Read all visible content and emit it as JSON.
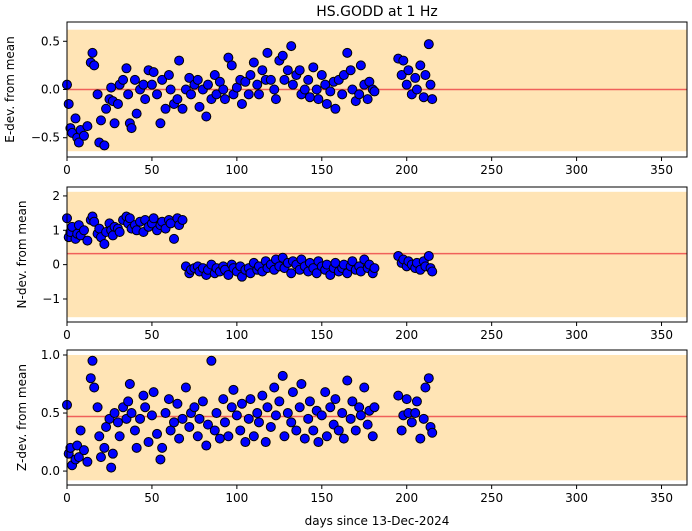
{
  "chart_data": {
    "type": "scatter",
    "title": "HS.GODD at 1 Hz",
    "xlabel": "days since 13-Dec-2024",
    "xlim": [
      0,
      365
    ],
    "xticks": [
      0,
      50,
      100,
      150,
      200,
      250,
      300,
      350
    ],
    "point_color": "#0000ff",
    "band_color": "#ffe4b5",
    "line_color": "#f0605a",
    "x": [
      0,
      1,
      2,
      3,
      5,
      6,
      7,
      8,
      10,
      12,
      14,
      15,
      16,
      18,
      19,
      20,
      22,
      23,
      25,
      26,
      27,
      28,
      30,
      31,
      33,
      35,
      36,
      37,
      38,
      40,
      41,
      43,
      45,
      46,
      48,
      50,
      51,
      53,
      55,
      56,
      58,
      60,
      61,
      63,
      65,
      66,
      68,
      70,
      72,
      73,
      75,
      77,
      78,
      80,
      82,
      83,
      85,
      87,
      88,
      90,
      92,
      93,
      95,
      97,
      98,
      100,
      102,
      103,
      105,
      107,
      108,
      110,
      112,
      113,
      115,
      117,
      118,
      120,
      122,
      123,
      125,
      127,
      128,
      130,
      132,
      133,
      135,
      137,
      138,
      140,
      142,
      143,
      145,
      147,
      148,
      150,
      152,
      153,
      155,
      157,
      158,
      160,
      162,
      163,
      165,
      167,
      168,
      170,
      172,
      173,
      175,
      177,
      178,
      180,
      181,
      195,
      197,
      198,
      200,
      201,
      203,
      205,
      206,
      208,
      210,
      211,
      213,
      214,
      215
    ],
    "panels": [
      {
        "ylabel": "E-dev. from mean",
        "ylim": [
          -0.7,
          0.7
        ],
        "yticks": [
          {
            "value": -0.5,
            "label": "−0.5"
          },
          {
            "value": 0,
            "label": "0.0"
          },
          {
            "value": 0.5,
            "label": "0.5"
          }
        ],
        "mean": 0,
        "band": [
          -0.64,
          0.62
        ],
        "values": [
          0.05,
          -0.15,
          -0.4,
          -0.45,
          -0.3,
          -0.5,
          -0.55,
          -0.42,
          -0.48,
          -0.38,
          0.28,
          0.38,
          0.25,
          -0.05,
          -0.55,
          -0.32,
          -0.58,
          -0.2,
          -0.1,
          0.02,
          -0.12,
          -0.35,
          -0.15,
          0.05,
          0.1,
          0.22,
          -0.05,
          -0.35,
          -0.4,
          0.1,
          -0.25,
          0.0,
          0.05,
          -0.1,
          0.2,
          0.05,
          0.18,
          -0.05,
          -0.35,
          0.1,
          -0.2,
          0.15,
          0.0,
          -0.15,
          -0.1,
          0.3,
          -0.2,
          0.0,
          0.12,
          -0.05,
          0.05,
          0.1,
          -0.18,
          0.0,
          -0.28,
          0.05,
          -0.1,
          0.15,
          -0.05,
          0.08,
          0.0,
          -0.1,
          0.33,
          0.25,
          -0.05,
          0.02,
          0.1,
          -0.15,
          0.08,
          -0.05,
          0.15,
          0.28,
          0.05,
          -0.05,
          0.2,
          0.1,
          0.38,
          0.1,
          0.0,
          -0.1,
          0.3,
          0.35,
          0.1,
          0.2,
          0.45,
          0.05,
          0.15,
          0.2,
          -0.05,
          0.0,
          0.1,
          -0.08,
          0.23,
          0.0,
          -0.1,
          0.15,
          0.05,
          -0.15,
          -0.02,
          0.08,
          -0.2,
          0.1,
          -0.05,
          0.15,
          0.38,
          0.2,
          0.0,
          -0.12,
          -0.05,
          0.25,
          0.05,
          -0.1,
          0.08,
          0.0,
          -0.02,
          0.32,
          0.15,
          0.3,
          0.05,
          0.2,
          -0.05,
          0.12,
          0.0,
          0.25,
          -0.08,
          0.15,
          0.47,
          0.05,
          -0.1
        ]
      },
      {
        "ylabel": "N-dev. from mean",
        "ylim": [
          -1.67,
          2.26
        ],
        "yticks": [
          {
            "value": -1,
            "label": "−1"
          },
          0,
          1,
          2
        ],
        "mean": 0.32,
        "band": [
          -1.53,
          2.12
        ],
        "values": [
          1.35,
          0.8,
          0.95,
          1.1,
          0.75,
          0.9,
          1.15,
          0.85,
          1.0,
          0.7,
          1.3,
          1.4,
          1.25,
          0.9,
          1.05,
          0.8,
          0.6,
          0.95,
          1.2,
          1.0,
          0.85,
          1.1,
          1.05,
          0.95,
          1.3,
          1.4,
          1.2,
          1.35,
          1.05,
          1.15,
          1.0,
          1.25,
          0.95,
          1.3,
          1.1,
          1.2,
          1.35,
          1.0,
          1.15,
          1.25,
          1.05,
          1.3,
          1.2,
          0.75,
          1.35,
          1.15,
          1.3,
          -0.05,
          -0.25,
          -0.15,
          -0.1,
          -0.05,
          -0.2,
          -0.1,
          -0.3,
          -0.15,
          0.0,
          -0.25,
          -0.1,
          -0.2,
          -0.05,
          -0.15,
          -0.3,
          0.0,
          -0.1,
          -0.2,
          -0.05,
          -0.35,
          -0.15,
          -0.1,
          -0.25,
          0.05,
          -0.15,
          -0.05,
          -0.2,
          0.1,
          -0.1,
          0.0,
          -0.15,
          0.15,
          -0.05,
          0.2,
          -0.1,
          0.05,
          -0.25,
          0.1,
          0.0,
          -0.15,
          0.15,
          -0.05,
          -0.2,
          0.05,
          -0.1,
          -0.25,
          0.1,
          -0.05,
          -0.15,
          0.0,
          -0.3,
          -0.1,
          0.05,
          -0.2,
          -0.1,
          0.0,
          -0.25,
          -0.05,
          0.1,
          -0.15,
          -0.05,
          -0.2,
          0.15,
          -0.1,
          0.0,
          -0.25,
          -0.1,
          0.25,
          0.05,
          0.15,
          -0.05,
          0.1,
          0.0,
          -0.1,
          0.05,
          -0.15,
          0.1,
          -0.05,
          0.25,
          -0.1,
          -0.2
        ]
      },
      {
        "ylabel": "Z-dev. from mean",
        "ylim": [
          -0.12,
          1.043
        ],
        "yticks": [
          {
            "value": 0,
            "label": "0.0"
          },
          {
            "value": 0.5,
            "label": "0.5"
          },
          {
            "value": 1,
            "label": "1.0"
          }
        ],
        "mean": 0.47,
        "band": [
          -0.08,
          1.0
        ],
        "values": [
          0.57,
          0.15,
          0.2,
          0.05,
          0.1,
          0.22,
          0.12,
          0.35,
          0.18,
          0.08,
          0.8,
          0.95,
          0.72,
          0.55,
          0.3,
          0.12,
          0.2,
          0.38,
          0.45,
          0.03,
          0.15,
          0.5,
          0.42,
          0.3,
          0.55,
          0.45,
          0.6,
          0.75,
          0.5,
          0.35,
          0.2,
          0.45,
          0.65,
          0.55,
          0.25,
          0.48,
          0.68,
          0.32,
          0.1,
          0.2,
          0.5,
          0.62,
          0.35,
          0.42,
          0.58,
          0.28,
          0.45,
          0.72,
          0.38,
          0.5,
          0.55,
          0.3,
          0.45,
          0.6,
          0.22,
          0.4,
          0.95,
          0.35,
          0.5,
          0.28,
          0.62,
          0.42,
          0.3,
          0.55,
          0.7,
          0.48,
          0.35,
          0.58,
          0.25,
          0.45,
          0.62,
          0.3,
          0.5,
          0.42,
          0.65,
          0.25,
          0.55,
          0.38,
          0.72,
          0.48,
          0.6,
          0.82,
          0.3,
          0.5,
          0.42,
          0.68,
          0.35,
          0.55,
          0.75,
          0.28,
          0.45,
          0.6,
          0.35,
          0.52,
          0.25,
          0.48,
          0.68,
          0.3,
          0.55,
          0.4,
          0.62,
          0.35,
          0.5,
          0.28,
          0.78,
          0.45,
          0.6,
          0.35,
          0.55,
          0.48,
          0.72,
          0.4,
          0.52,
          0.3,
          0.55,
          0.65,
          0.35,
          0.48,
          0.62,
          0.5,
          0.42,
          0.5,
          0.6,
          0.28,
          0.45,
          0.72,
          0.8,
          0.38,
          0.33
        ]
      }
    ]
  }
}
